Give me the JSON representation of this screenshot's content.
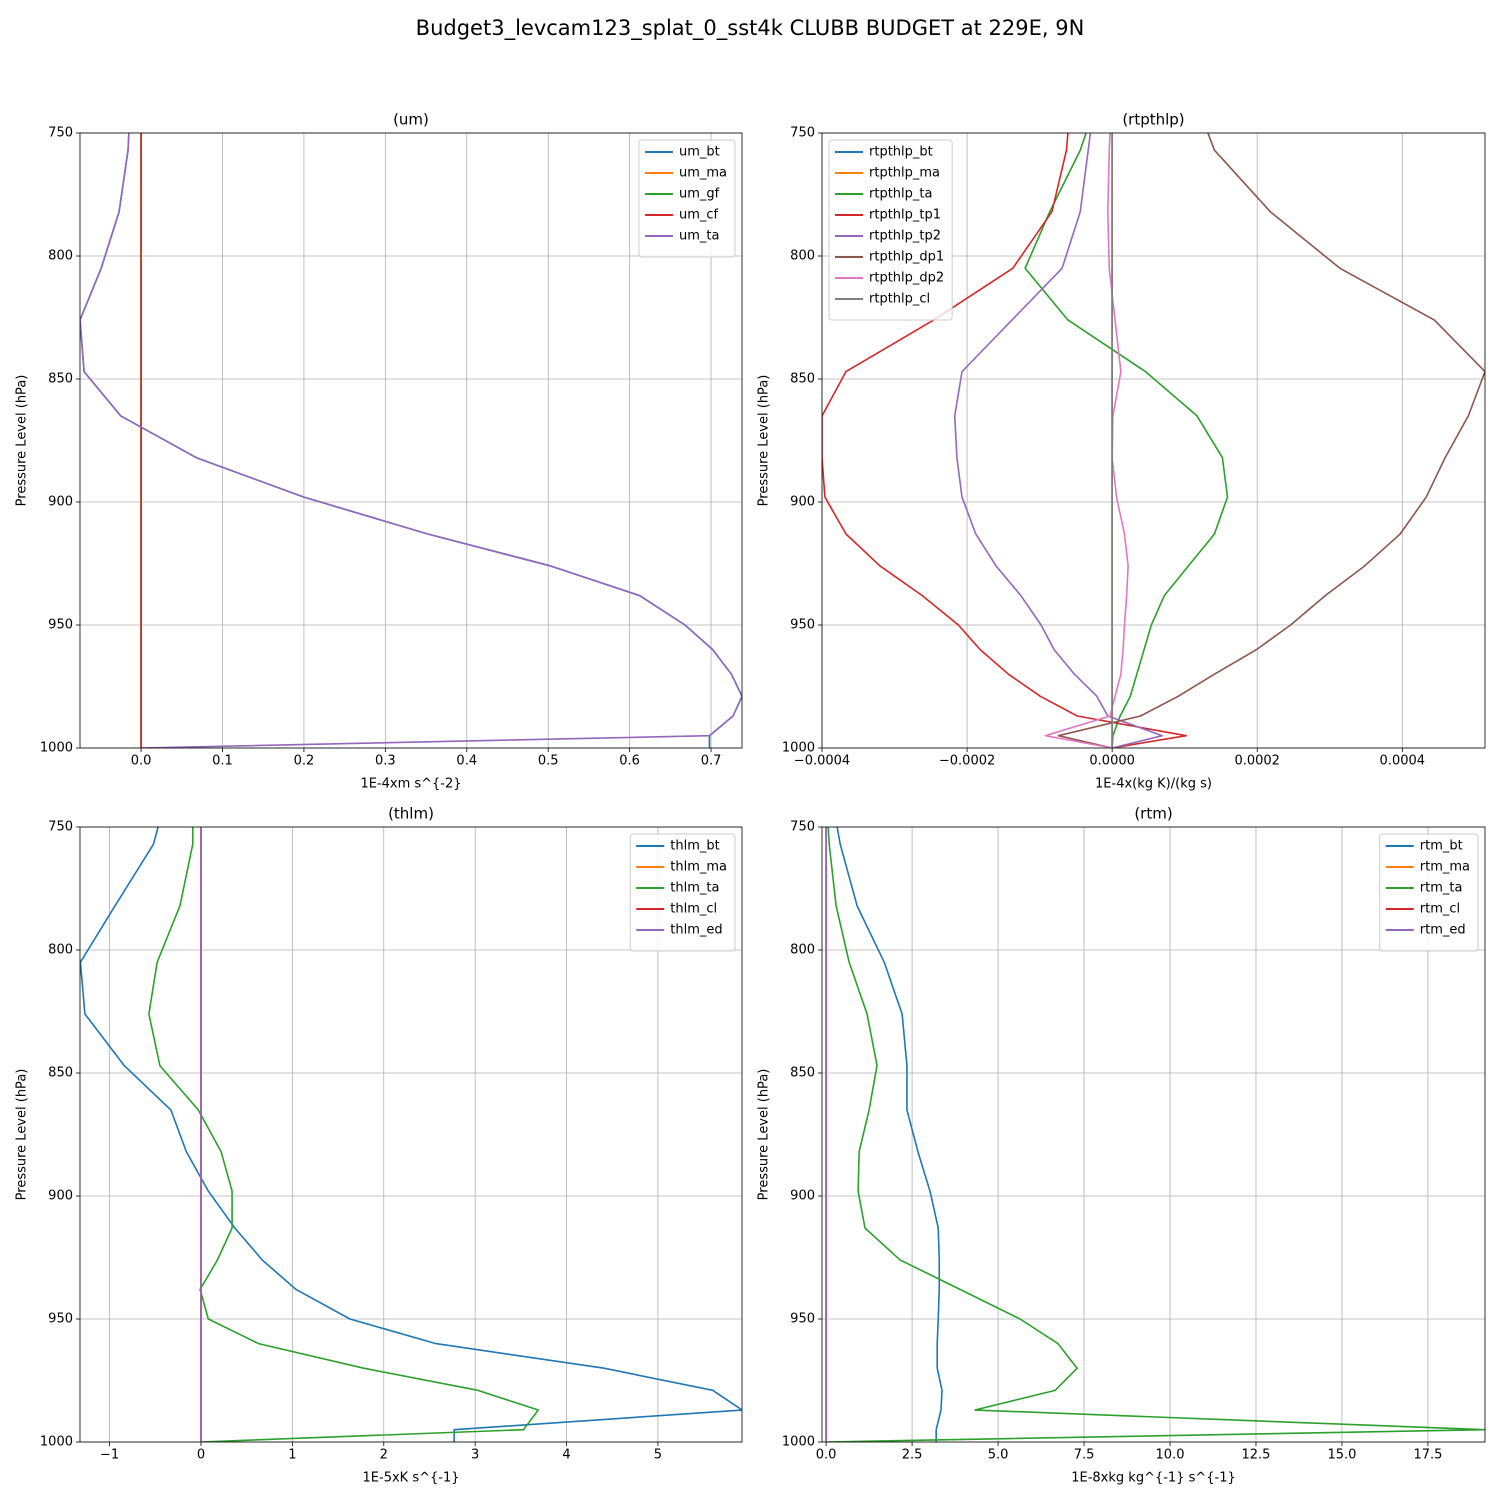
{
  "title": "Budget3_levcam123_splat_0_sst4k CLUBB BUDGET at 229E, 9N",
  "chart_data": [
    {
      "type": "line",
      "title": "(um)",
      "xlabel": "1E-4xm s^{-2}",
      "ylabel": "Pressure Level (hPa)",
      "y": [
        750,
        757,
        782,
        805,
        826,
        847,
        865,
        882,
        898,
        913,
        926,
        938,
        950,
        960,
        970,
        979,
        987,
        995,
        1000
      ],
      "series": [
        {
          "name": "um_bt",
          "color": "#1f77b4",
          "values": [
            -0.015,
            -0.016,
            -0.027,
            -0.049,
            -0.075,
            -0.07,
            -0.025,
            0.068,
            0.2,
            0.352,
            0.503,
            0.612,
            0.668,
            0.702,
            0.725,
            0.738,
            0.727,
            0.698,
            0.698
          ]
        },
        {
          "name": "um_ma",
          "color": "#ff7f0e",
          "values": [
            0,
            0,
            0,
            0,
            0,
            0,
            0,
            0,
            0,
            0,
            0,
            0,
            0,
            0,
            0,
            0,
            0,
            0,
            0
          ]
        },
        {
          "name": "um_gf",
          "color": "#2ca02c",
          "values": [
            0,
            0,
            0,
            0,
            0,
            0,
            0,
            0,
            0,
            0,
            0,
            0,
            0,
            0,
            0,
            0,
            0,
            0,
            0
          ]
        },
        {
          "name": "um_cf",
          "color": "#d62728",
          "values": [
            0,
            0,
            0,
            0,
            0,
            0,
            0,
            0,
            0,
            0,
            0,
            0,
            0,
            0,
            0,
            0,
            0,
            0,
            0
          ]
        },
        {
          "name": "um_ta",
          "color": "#9467bd",
          "values": [
            -0.015,
            -0.016,
            -0.027,
            -0.049,
            -0.075,
            -0.07,
            -0.025,
            0.068,
            0.2,
            0.352,
            0.503,
            0.612,
            0.668,
            0.702,
            0.725,
            0.738,
            0.727,
            0.698,
            0
          ]
        }
      ],
      "xlim": [
        -0.075,
        0.738
      ],
      "xticks": [
        {
          "value": 0,
          "label": "0.0"
        },
        0.1,
        0.2,
        0.3,
        0.4,
        0.5,
        0.6,
        0.7
      ],
      "ylim": [
        750,
        1000
      ],
      "yticks": [
        750,
        800,
        850,
        900,
        950,
        1000
      ],
      "y_inverted": true,
      "grid": true,
      "legend": "upper right"
    },
    {
      "type": "line",
      "title": "(rtpthlp)",
      "xlabel": "1E-4x(kg K)/(kg s)",
      "ylabel": "Pressure Level (hPa)",
      "y": [
        750,
        757,
        782,
        805,
        826,
        847,
        865,
        882,
        898,
        913,
        926,
        938,
        950,
        960,
        970,
        979,
        987,
        995,
        1000
      ],
      "series": [
        {
          "name": "rtpthlp_bt",
          "color": "#1f77b4",
          "values": [
            0,
            0,
            0,
            0,
            0,
            0,
            0,
            0,
            0,
            0,
            0,
            0,
            0,
            0,
            0,
            0,
            0,
            0,
            0
          ]
        },
        {
          "name": "rtpthlp_ma",
          "color": "#ff7f0e",
          "values": [
            0,
            0,
            0,
            0,
            0,
            0,
            0,
            0,
            0,
            0,
            0,
            0,
            0,
            0,
            0,
            0,
            0,
            0,
            0
          ]
        },
        {
          "name": "rtpthlp_ta",
          "color": "#2ca02c",
          "values": [
            -3.6e-05,
            -4.4e-05,
            -8.6e-05,
            -0.00012,
            -6.1e-05,
            4.6e-05,
            0.000117,
            0.000152,
            0.000159,
            0.000141,
            0.000105,
            7.2e-05,
            5.4e-05,
            4.4e-05,
            3.4e-05,
            2.5e-05,
            1.1e-05,
            1e-06,
            0
          ]
        },
        {
          "name": "rtpthlp_tp1",
          "color": "#d62728",
          "values": [
            -6.1e-05,
            -6.3e-05,
            -8.3e-05,
            -0.000137,
            -0.000246,
            -0.000367,
            -0.0004,
            -0.0004,
            -0.000396,
            -0.000367,
            -0.00032,
            -0.000262,
            -0.000212,
            -0.000182,
            -0.000143,
            -9.9e-05,
            -4.8e-05,
            0.000102,
            0
          ]
        },
        {
          "name": "rtpthlp_tp2",
          "color": "#9467bd",
          "values": [
            -3e-05,
            -3.3e-05,
            -4.4e-05,
            -6.9e-05,
            -0.000138,
            -0.000207,
            -0.000217,
            -0.000214,
            -0.000207,
            -0.000188,
            -0.00016,
            -0.000126,
            -9.8e-05,
            -8e-05,
            -5.2e-05,
            -2.1e-05,
            -6e-06,
            6.9e-05,
            0
          ]
        },
        {
          "name": "rtpthlp_dp1",
          "color": "#8c564b",
          "values": [
            0.000132,
            0.000141,
            0.000218,
            0.000314,
            0.000444,
            0.000514,
            0.000491,
            0.000459,
            0.000433,
            0.000397,
            0.000348,
            0.000294,
            0.000246,
            0.000199,
            0.000141,
            9.1e-05,
            3.9e-05,
            -7.4e-05,
            0
          ]
        },
        {
          "name": "rtpthlp_dp2",
          "color": "#e377c2",
          "values": [
            -3e-06,
            -4e-06,
            -6e-06,
            -4e-06,
            4e-06,
            1.2e-05,
            1e-06,
            0,
            6e-06,
            1.7e-05,
            2.2e-05,
            2e-05,
            1.7e-05,
            1.5e-05,
            1.2e-05,
            4e-06,
            -3e-06,
            -9.2e-05,
            0
          ]
        },
        {
          "name": "rtpthlp_cl",
          "color": "#7f7f7f",
          "values": [
            0,
            0,
            0,
            0,
            0,
            0,
            0,
            0,
            0,
            0,
            0,
            0,
            0,
            0,
            0,
            0,
            0,
            0,
            0
          ]
        }
      ],
      "xlim": [
        -0.0004,
        0.000514
      ],
      "xticks": [
        {
          "value": -0.0004,
          "label": "−0.0004"
        },
        {
          "value": -0.0002,
          "label": "−0.0002"
        },
        {
          "value": 0,
          "label": "0.0000"
        },
        0.0002,
        0.0004
      ],
      "ylim": [
        750,
        1000
      ],
      "yticks": [
        750,
        800,
        850,
        900,
        950,
        1000
      ],
      "y_inverted": true,
      "grid": true,
      "legend": "upper left"
    },
    {
      "type": "line",
      "title": "(thlm)",
      "xlabel": "1E-5xK s^{-1}",
      "ylabel": "Pressure Level (hPa)",
      "y": [
        750,
        757,
        782,
        805,
        826,
        847,
        865,
        882,
        898,
        913,
        926,
        938,
        950,
        960,
        970,
        979,
        987,
        995,
        1000
      ],
      "series": [
        {
          "name": "thlm_bt",
          "color": "#1f77b4",
          "values": [
            -0.47,
            -0.52,
            -0.94,
            -1.32,
            -1.27,
            -0.84,
            -0.33,
            -0.16,
            0.08,
            0.37,
            0.67,
            1.04,
            1.63,
            2.57,
            4.41,
            5.6,
            5.92,
            2.77,
            2.77
          ]
        },
        {
          "name": "thlm_ma",
          "color": "#ff7f0e",
          "values": [
            0,
            0,
            0,
            0,
            0,
            0,
            0,
            0,
            0,
            0,
            0,
            0,
            0,
            0,
            0,
            0,
            0,
            0,
            0
          ]
        },
        {
          "name": "thlm_ta",
          "color": "#2ca02c",
          "values": [
            -0.09,
            -0.09,
            -0.23,
            -0.48,
            -0.57,
            -0.45,
            -0.03,
            0.22,
            0.34,
            0.34,
            0.18,
            -0.01,
            0.08,
            0.63,
            1.78,
            3.03,
            3.69,
            3.53,
            0
          ]
        },
        {
          "name": "thlm_cl",
          "color": "#d62728",
          "values": [
            0,
            0,
            0,
            0,
            0,
            0,
            0,
            0,
            0,
            0,
            0,
            0,
            0,
            0,
            0,
            0,
            0,
            0,
            0
          ]
        },
        {
          "name": "thlm_ed",
          "color": "#9467bd",
          "values": [
            0,
            0,
            0,
            0,
            0,
            0,
            0,
            0,
            0,
            0,
            0,
            0,
            0,
            0,
            0,
            0,
            0,
            0,
            0
          ]
        }
      ],
      "xlim": [
        -1.324,
        5.92
      ],
      "xticks": [
        {
          "value": -1,
          "label": "−1"
        },
        0,
        1,
        2,
        3,
        4,
        5
      ],
      "ylim": [
        750,
        1000
      ],
      "yticks": [
        750,
        800,
        850,
        900,
        950,
        1000
      ],
      "y_inverted": true,
      "grid": true,
      "legend": "upper right"
    },
    {
      "type": "line",
      "title": "(rtm)",
      "xlabel": "1E-8xkg kg^{-1} s^{-1}",
      "ylabel": "Pressure Level (hPa)",
      "y": [
        750,
        757,
        782,
        805,
        826,
        847,
        865,
        882,
        898,
        913,
        926,
        938,
        950,
        960,
        970,
        979,
        987,
        995,
        1000
      ],
      "series": [
        {
          "name": "rtm_bt",
          "color": "#1f77b4",
          "values": [
            0.32,
            0.41,
            0.9,
            1.69,
            2.21,
            2.35,
            2.35,
            2.67,
            3.02,
            3.26,
            3.29,
            3.29,
            3.26,
            3.23,
            3.23,
            3.37,
            3.34,
            3.2,
            3.2
          ]
        },
        {
          "name": "rtm_ma",
          "color": "#ff7f0e",
          "values": [
            0,
            0,
            0,
            0,
            0,
            0,
            0,
            0,
            0,
            0,
            0,
            0,
            0,
            0,
            0,
            0,
            0,
            0,
            0
          ]
        },
        {
          "name": "rtm_ta",
          "color": "#2ca02c",
          "values": [
            0.06,
            0.09,
            0.29,
            0.67,
            1.19,
            1.48,
            1.25,
            0.96,
            0.93,
            1.13,
            2.15,
            3.9,
            5.64,
            6.74,
            7.3,
            6.66,
            4.33,
            19.16,
            0
          ]
        },
        {
          "name": "rtm_cl",
          "color": "#d62728",
          "values": [
            0,
            0,
            0,
            0,
            0,
            0,
            0,
            0,
            0,
            0,
            0,
            0,
            0,
            0,
            0,
            0,
            0,
            0,
            0
          ]
        },
        {
          "name": "rtm_ed",
          "color": "#9467bd",
          "values": [
            0,
            0,
            0,
            0,
            0,
            0,
            0,
            0,
            0,
            0,
            0,
            0,
            0,
            0,
            0,
            0,
            0,
            0,
            0
          ]
        }
      ],
      "xlim": [
        -0.12,
        19.16
      ],
      "xticks": [
        {
          "value": 0,
          "label": "0.0"
        },
        2.5,
        {
          "value": 5,
          "label": "5.0"
        },
        7.5,
        {
          "value": 10,
          "label": "10.0"
        },
        12.5,
        {
          "value": 15,
          "label": "15.0"
        },
        17.5
      ],
      "ylim": [
        750,
        1000
      ],
      "yticks": [
        750,
        800,
        850,
        900,
        950,
        1000
      ],
      "y_inverted": true,
      "grid": true,
      "legend": "upper right"
    }
  ]
}
